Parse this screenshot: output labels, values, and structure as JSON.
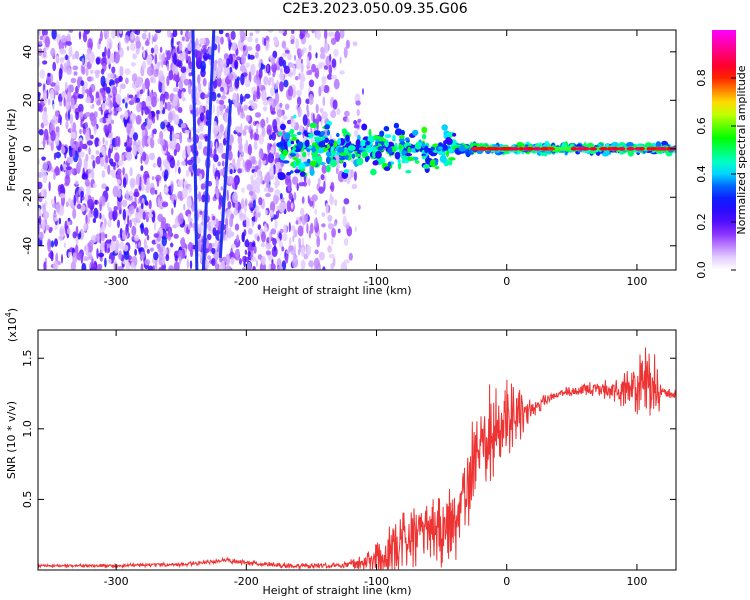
{
  "page_title": "C2E3.2023.050.09.35.G06",
  "chart_data": [
    {
      "type": "heatmap",
      "title": "C2E3.2023.050.09.35.G06",
      "xlabel": "Height of straight line (km)",
      "ylabel": "Frequency (Hz)",
      "xlim": [
        -360,
        130
      ],
      "ylim": [
        -50,
        49
      ],
      "xticks": [
        -300,
        -200,
        -100,
        0,
        100
      ],
      "yticks": [
        -40,
        -20,
        0,
        20,
        40
      ],
      "xtick_labels": [
        "-300",
        "-200",
        "-100",
        "0",
        "100"
      ],
      "ytick_labels": [
        "-40",
        "-20",
        "0",
        "20",
        "40"
      ],
      "colorbar": {
        "label": "Normalized spectral amplitude",
        "range": [
          0,
          1
        ],
        "ticks": [
          0.0,
          0.2,
          0.4,
          0.6,
          0.8
        ],
        "tick_labels": [
          "0.0",
          "0.2",
          "0.4",
          "0.6",
          "0.8"
        ],
        "colors": [
          "#ffffff",
          "#8800ff",
          "#0000ff",
          "#00ffff",
          "#00ff00",
          "#ffff00",
          "#ff0000",
          "#ff00ff"
        ]
      },
      "features": {
        "noise_region_x": [
          -360,
          -130
        ],
        "carrier_tone_x": [
          -175,
          130
        ],
        "carrier_tone_y": 0,
        "diagonal_streaks": [
          {
            "x": [
              -241,
              -238
            ],
            "y": [
              49,
              -50
            ]
          },
          {
            "x": [
              -233,
              -225
            ],
            "y": [
              -50,
              49
            ]
          },
          {
            "x": [
              -220,
              -212
            ],
            "y": [
              -45,
              20
            ]
          }
        ]
      }
    },
    {
      "type": "line",
      "xlabel": "Height of straight line (km)",
      "ylabel": "SNR (10 * v/v)",
      "multiplier_label": "(x10",
      "multiplier_exp": "4",
      "multiplier_close": ")",
      "xlim": [
        -360,
        130
      ],
      "ylim": [
        0,
        1.7
      ],
      "xticks": [
        -300,
        -200,
        -100,
        0,
        100
      ],
      "yticks": [
        0.5,
        1.0,
        1.5
      ],
      "xtick_labels": [
        "-300",
        "-200",
        "-100",
        "0",
        "100"
      ],
      "ytick_labels": [
        "0.5",
        "1.0",
        "1.5"
      ],
      "color": "#ee3333",
      "profile": {
        "x": [
          -360,
          -300,
          -250,
          -225,
          -215,
          -200,
          -170,
          -140,
          -120,
          -100,
          -90,
          -80,
          -70,
          -60,
          -50,
          -40,
          -30,
          -20,
          -10,
          0,
          10,
          20,
          30,
          40,
          50,
          60,
          70,
          80,
          90,
          100,
          105,
          110,
          115,
          120,
          130
        ],
        "y": [
          0.03,
          0.03,
          0.04,
          0.06,
          0.07,
          0.05,
          0.03,
          0.03,
          0.04,
          0.07,
          0.12,
          0.2,
          0.25,
          0.3,
          0.25,
          0.35,
          0.6,
          0.85,
          1.0,
          1.05,
          1.1,
          1.15,
          1.2,
          1.25,
          1.27,
          1.28,
          1.28,
          1.27,
          1.27,
          1.3,
          1.35,
          1.3,
          1.25,
          1.25,
          1.25
        ]
      },
      "noise_amplitude": {
        "x": [
          -360,
          -130,
          -110,
          -90,
          -60,
          -40,
          -20,
          0,
          20,
          40,
          70,
          90,
          100,
          110,
          120,
          130
        ],
        "y": [
          0.01,
          0.02,
          0.05,
          0.2,
          0.25,
          0.3,
          0.4,
          0.3,
          0.08,
          0.03,
          0.06,
          0.12,
          0.2,
          0.4,
          0.04,
          0.03
        ]
      }
    }
  ]
}
